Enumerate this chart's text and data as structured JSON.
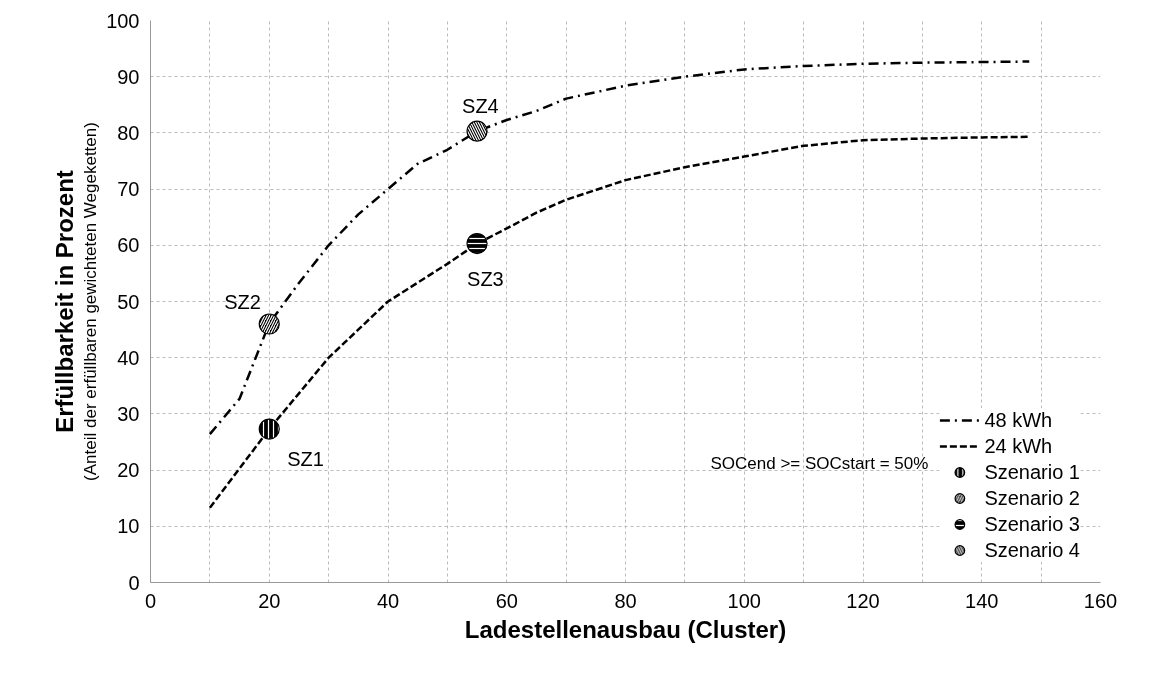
{
  "chart_data": {
    "type": "line",
    "xlabel": "Ladestellenausbau (Cluster)",
    "ylabel": "Erfüllbarkeit in Prozent",
    "series": [
      {
        "name": "48 kWh",
        "color": "#000000",
        "line_style": "dashdot",
        "x": [
          10,
          15,
          20,
          25,
          30,
          35,
          40,
          45,
          50,
          55,
          60,
          65,
          70,
          80,
          90,
          100,
          110,
          120,
          130,
          140,
          148
        ],
        "values": [
          26.4,
          32.7,
          46.1,
          53.3,
          60.0,
          65.5,
          70.0,
          74.5,
          77.0,
          80.3,
          82.3,
          83.9,
          86.1,
          88.4,
          90.0,
          91.3,
          91.9,
          92.3,
          92.5,
          92.6,
          92.7
        ]
      },
      {
        "name": "24 kWh",
        "color": "#000000",
        "line_style": "dashed",
        "x": [
          10,
          20,
          30,
          40,
          50,
          55,
          60,
          65,
          70,
          80,
          90,
          100,
          110,
          120,
          130,
          140,
          148
        ],
        "values": [
          13.3,
          27.3,
          40.0,
          50.0,
          56.7,
          60.3,
          63.0,
          65.8,
          68.1,
          71.6,
          73.9,
          75.8,
          77.7,
          78.7,
          79.0,
          79.2,
          79.3
        ]
      },
      {
        "name": "Szenario 1",
        "type": "scatter",
        "marker": "circle",
        "color": "#000000",
        "x": [
          20
        ],
        "values": [
          27.3
        ],
        "value_labels": [
          "SZ1"
        ]
      },
      {
        "name": "Szenario 2",
        "type": "scatter",
        "marker": "circle",
        "color": "#000000",
        "x": [
          20
        ],
        "values": [
          46.0
        ],
        "value_labels": [
          "SZ2"
        ]
      },
      {
        "name": "Szenario 3",
        "type": "scatter",
        "marker": "circle",
        "color": "#000000",
        "x": [
          55
        ],
        "values": [
          60.3
        ],
        "value_labels": [
          "SZ3"
        ]
      },
      {
        "name": "Szenario 4",
        "type": "scatter",
        "marker": "circle",
        "color": "#000000",
        "x": [
          55
        ],
        "values": [
          80.3
        ],
        "value_labels": [
          "SZ4"
        ]
      }
    ],
    "xlim": [
      0,
      160
    ],
    "ylim": [
      0,
      100
    ],
    "xticks": [
      0,
      {
        "value": 10,
        "label": null
      },
      20,
      {
        "value": 30,
        "label": null
      },
      40,
      {
        "value": 50,
        "label": null
      },
      60,
      {
        "value": 70,
        "label": null
      },
      80,
      {
        "value": 90,
        "label": null
      },
      100,
      {
        "value": 110,
        "label": null
      },
      120,
      {
        "value": 130,
        "label": null
      },
      140,
      {
        "value": 150,
        "label": null
      },
      160
    ],
    "yticks": [
      0,
      10,
      20,
      30,
      40,
      50,
      60,
      70,
      80,
      90,
      100
    ],
    "grid": true,
    "legend": "bottom right",
    "marker": "none",
    "annotations": [
      "(Anteil der erfüllbaren gewichteten Wegeketten)",
      "SOCend >= SOCstart = 50%"
    ]
  }
}
